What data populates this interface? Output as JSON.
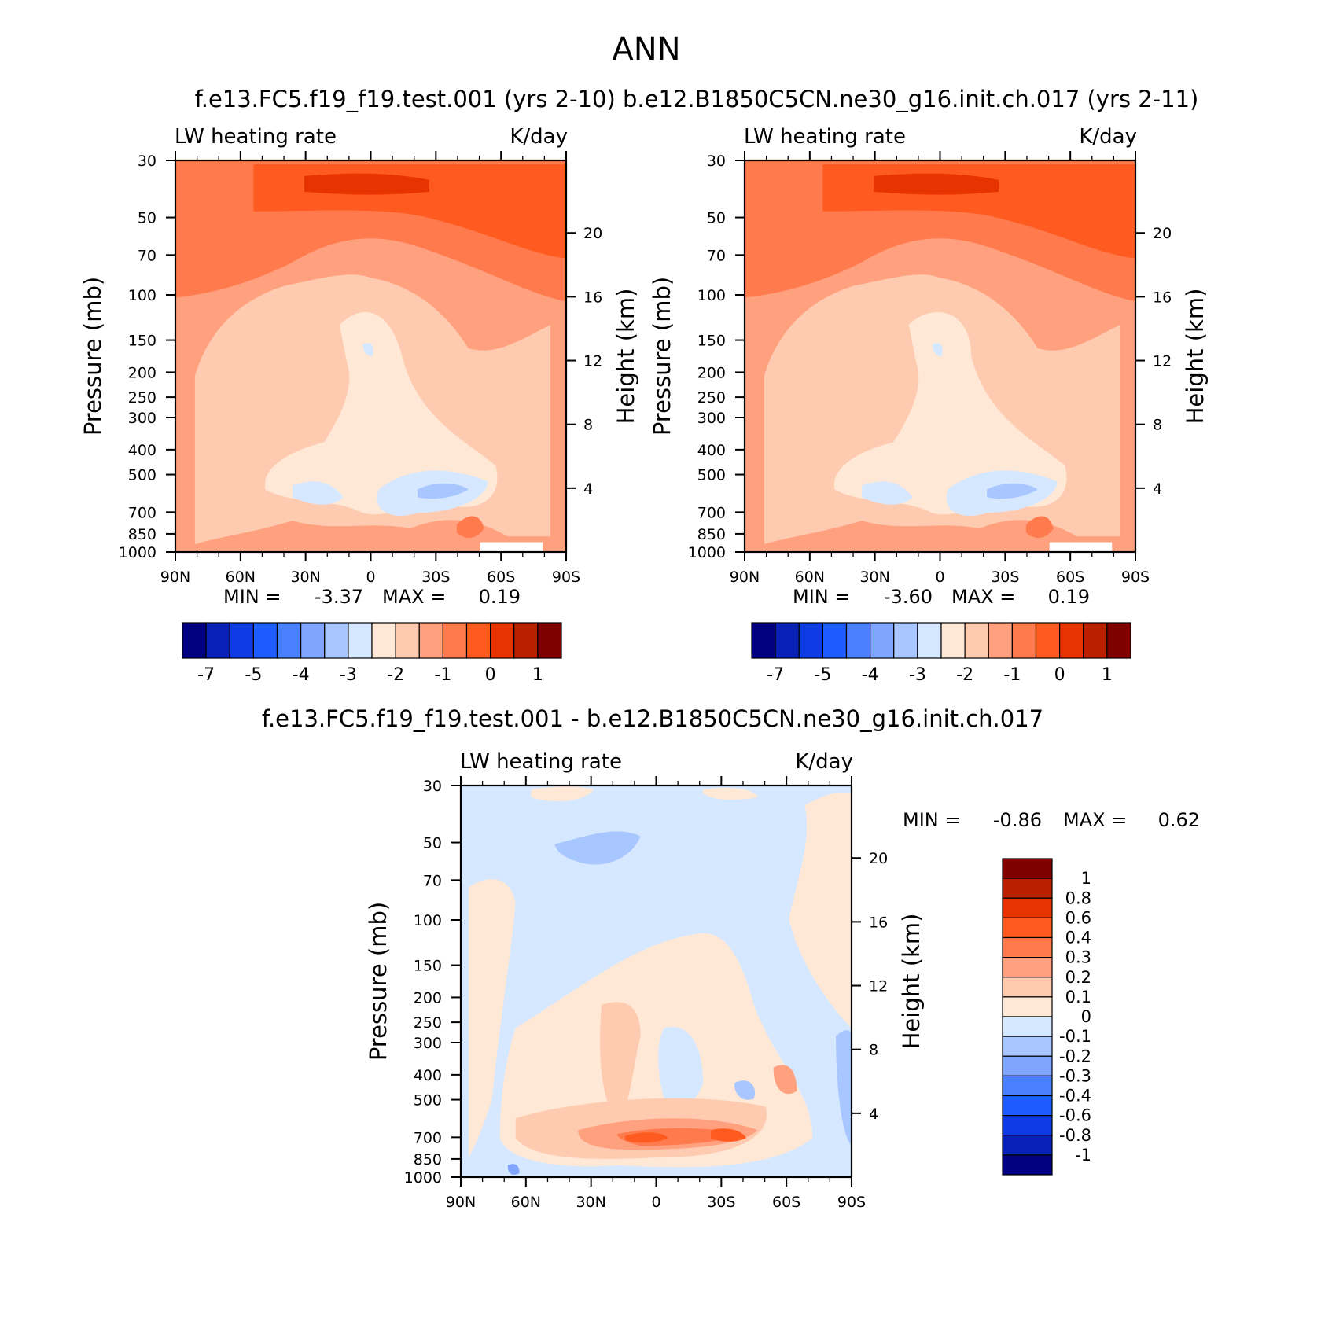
{
  "figure_title": "ANN",
  "panels_header": "f.e13.FC5.f19_f19.test.001 (yrs 2-10) b.e12.B1850C5CN.ne30_g16.init.ch.017 (yrs 2-11)",
  "diff_header": "f.e13.FC5.f19_f19.test.001 - b.e12.B1850C5CN.ne30_g16.init.ch.017",
  "palette_main": [
    "#000080",
    "#0a21b8",
    "#0f3be5",
    "#1f5cff",
    "#4a80ff",
    "#7fa5ff",
    "#a8c6ff",
    "#d6e8ff",
    "#ffe8d6",
    "#ffcbb0",
    "#ffa07e",
    "#ff7a4d",
    "#ff5a1f",
    "#e63300",
    "#b82000",
    "#800000"
  ],
  "palette_diff": [
    "#000080",
    "#0a21b8",
    "#0f3be5",
    "#1f5cff",
    "#4a80ff",
    "#7fa5ff",
    "#a8c6ff",
    "#d6e8ff",
    "#ffe8d6",
    "#ffcbb0",
    "#ffa07e",
    "#ff7a4d",
    "#ff5a1f",
    "#e63300",
    "#b82000",
    "#800000"
  ],
  "chart_data": [
    {
      "type": "heatmap",
      "title": "LW heating rate",
      "units": "K/day",
      "ylabel": "Pressure (mb)",
      "y2label": "Height (km)",
      "x_ticks": [
        "90N",
        "60N",
        "30N",
        "0",
        "30S",
        "60S",
        "90S"
      ],
      "y_ticks": [
        "30",
        "50",
        "70",
        "100",
        "150",
        "200",
        "250",
        "300",
        "400",
        "500",
        "700",
        "850",
        "1000"
      ],
      "y2_ticks": [
        "20",
        "16",
        "12",
        "8",
        "4"
      ],
      "min_label": "MIN =",
      "min_value": "-3.37",
      "max_label": "MAX =",
      "max_value": "0.19",
      "colorbar_labels": [
        "-7",
        "-5",
        "-4",
        "-3",
        "-2",
        "-1",
        "0",
        "1"
      ]
    },
    {
      "type": "heatmap",
      "title": "LW heating rate",
      "units": "K/day",
      "ylabel": "Pressure (mb)",
      "y2label": "Height (km)",
      "x_ticks": [
        "90N",
        "60N",
        "30N",
        "0",
        "30S",
        "60S",
        "90S"
      ],
      "y_ticks": [
        "30",
        "50",
        "70",
        "100",
        "150",
        "200",
        "250",
        "300",
        "400",
        "500",
        "700",
        "850",
        "1000"
      ],
      "y2_ticks": [
        "20",
        "16",
        "12",
        "8",
        "4"
      ],
      "min_label": "MIN =",
      "min_value": "-3.60",
      "max_label": "MAX =",
      "max_value": "0.19",
      "colorbar_labels": [
        "-7",
        "-5",
        "-4",
        "-3",
        "-2",
        "-1",
        "0",
        "1"
      ]
    },
    {
      "type": "heatmap",
      "title": "LW heating rate",
      "units": "K/day",
      "ylabel": "Pressure (mb)",
      "y2label": "Height (km)",
      "x_ticks": [
        "90N",
        "60N",
        "30N",
        "0",
        "30S",
        "60S",
        "90S"
      ],
      "y_ticks": [
        "30",
        "50",
        "70",
        "100",
        "150",
        "200",
        "250",
        "300",
        "400",
        "500",
        "700",
        "850",
        "1000"
      ],
      "y2_ticks": [
        "20",
        "16",
        "12",
        "8",
        "4"
      ],
      "min_label": "MIN =",
      "min_value": "-0.86",
      "max_label": "MAX =",
      "max_value": "0.62",
      "colorbar_labels": [
        "1",
        "0.8",
        "0.6",
        "0.4",
        "0.3",
        "0.2",
        "0.1",
        "0",
        "-0.1",
        "-0.2",
        "-0.3",
        "-0.4",
        "-0.6",
        "-0.8",
        "-1"
      ]
    }
  ]
}
